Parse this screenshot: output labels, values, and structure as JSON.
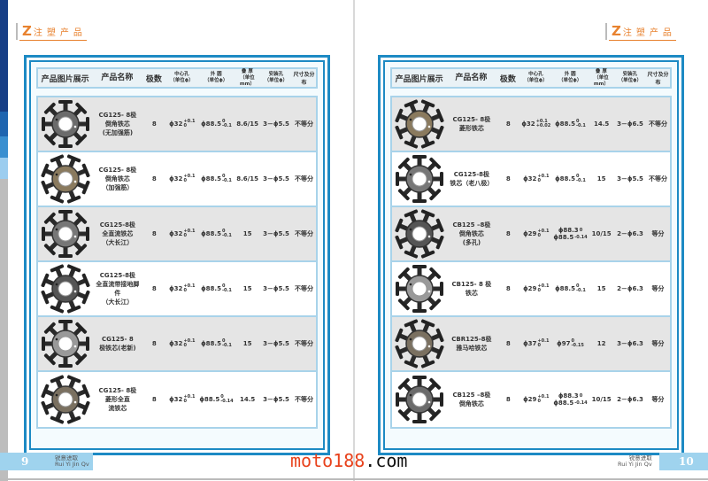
{
  "section_title": {
    "letter": "Z",
    "text": "注塑产品"
  },
  "headers": [
    "产品图片展示",
    "产品名称",
    "极数",
    [
      "中心孔",
      "（单位ϕ）"
    ],
    [
      "外 圆",
      "（单位ϕ）"
    ],
    [
      "叠 厚",
      "（单位mm）"
    ],
    [
      "安装孔",
      "（单位ϕ）"
    ],
    "尺寸及分布"
  ],
  "pages": [
    {
      "page_number": "9",
      "rows": [
        {
          "name": [
            "CG125- 8极",
            "倒角铁芯",
            "(无加强筋)"
          ],
          "poles": "8",
          "center": [
            {
              "b": "ϕ32",
              "u": "+0.1",
              "l": "0"
            }
          ],
          "outer": [
            {
              "b": "ϕ88.5",
              "u": "0",
              "l": "-0.1"
            }
          ],
          "thickness": "8.6/15",
          "holes": "3－ϕ5.5",
          "distribution": "不等分"
        },
        {
          "name": [
            "CG125- 8极",
            "倒角铁芯",
            "（加强筋）"
          ],
          "poles": "8",
          "center": [
            {
              "b": "ϕ32",
              "u": "+0.1",
              "l": "0"
            }
          ],
          "outer": [
            {
              "b": "ϕ88.5",
              "u": "0",
              "l": "-0.1"
            }
          ],
          "thickness": "8.6/15",
          "holes": "3－ϕ5.5",
          "distribution": "不等分"
        },
        {
          "name": [
            "CG125-8极",
            "全直流铁芯",
            "（大长江）"
          ],
          "poles": "8",
          "center": [
            {
              "b": "ϕ32",
              "u": "+0.1",
              "l": "0"
            }
          ],
          "outer": [
            {
              "b": "ϕ88.5",
              "u": "0",
              "l": "-0.1"
            }
          ],
          "thickness": "15",
          "holes": "3－ϕ5.5",
          "distribution": "不等分"
        },
        {
          "name": [
            "CG125-8极",
            "全直流带接地脚件",
            "（大长江）"
          ],
          "poles": "8",
          "center": [
            {
              "b": "ϕ32",
              "u": "+0.1",
              "l": "0"
            }
          ],
          "outer": [
            {
              "b": "ϕ88.5",
              "u": "0",
              "l": "-0.1"
            }
          ],
          "thickness": "15",
          "holes": "3－ϕ5.5",
          "distribution": "不等分"
        },
        {
          "name": [
            "CG125- 8",
            "极铁芯(老新)"
          ],
          "poles": "8",
          "center": [
            {
              "b": "ϕ32",
              "u": "+0.1",
              "l": "0"
            }
          ],
          "outer": [
            {
              "b": "ϕ88.5",
              "u": "0",
              "l": "-0.1"
            }
          ],
          "thickness": "15",
          "holes": "3－ϕ5.5",
          "distribution": "不等分"
        },
        {
          "name": [
            "CG125- 8极",
            "菱形全直",
            "流铁芯"
          ],
          "poles": "8",
          "center": [
            {
              "b": "ϕ32",
              "u": "+0.1",
              "l": "0"
            }
          ],
          "outer": [
            {
              "b": "ϕ88.5",
              "u": "0",
              "l": "-0.14"
            }
          ],
          "thickness": "14.5",
          "holes": "3－ϕ5.5",
          "distribution": "不等分"
        }
      ]
    },
    {
      "page_number": "10",
      "rows": [
        {
          "name": [
            "CG125- 8极",
            "菱形铁芯"
          ],
          "poles": "8",
          "center": [
            {
              "b": "ϕ32",
              "u": "+0.1",
              "l": "+0.02"
            }
          ],
          "outer": [
            {
              "b": "ϕ88.5",
              "u": "0",
              "l": "-0.1"
            }
          ],
          "thickness": "14.5",
          "holes": "3－ϕ6.5",
          "distribution": "不等分"
        },
        {
          "name": [
            "CG125-8极",
            "铁芯（老八极）"
          ],
          "poles": "8",
          "center": [
            {
              "b": "ϕ32",
              "u": "+0.1",
              "l": "0"
            }
          ],
          "outer": [
            {
              "b": "ϕ88.5",
              "u": "0",
              "l": "-0.1"
            }
          ],
          "thickness": "15",
          "holes": "3－ϕ5.5",
          "distribution": "不等分"
        },
        {
          "name": [
            "CB125 –8极",
            "倒角铁芯",
            "(多孔)"
          ],
          "poles": "8",
          "center": [
            {
              "b": "ϕ29",
              "u": "+0.1",
              "l": "0"
            }
          ],
          "outer": [
            {
              "b": "ϕ88.3",
              "u": "0",
              "l": ""
            },
            {
              "b": "ϕ88.5",
              "u": "",
              "l": "-0.14"
            }
          ],
          "thickness": "10/15",
          "holes": "2－ϕ6.3",
          "distribution": "等分"
        },
        {
          "name": [
            "CB125- 8 极",
            "铁芯"
          ],
          "poles": "8",
          "center": [
            {
              "b": "ϕ29",
              "u": "+0.1",
              "l": "0"
            }
          ],
          "outer": [
            {
              "b": "ϕ88.5",
              "u": "0",
              "l": "-0.1"
            }
          ],
          "thickness": "15",
          "holes": "2－ϕ6.3",
          "distribution": "等分"
        },
        {
          "name": [
            "CBR125-8极",
            "雅马哈铁芯"
          ],
          "poles": "8",
          "center": [
            {
              "b": "ϕ37",
              "u": "+0.1",
              "l": "0"
            }
          ],
          "outer": [
            {
              "b": "ϕ97",
              "u": "0",
              "l": "-0.15"
            }
          ],
          "thickness": "12",
          "holes": "3－ϕ6.3",
          "distribution": "等分"
        },
        {
          "name": [
            "CB125 –8极",
            "倒角铁芯"
          ],
          "poles": "8",
          "center": [
            {
              "b": "ϕ29",
              "u": "+0.1",
              "l": "0"
            }
          ],
          "outer": [
            {
              "b": "ϕ88.3",
              "u": "0",
              "l": ""
            },
            {
              "b": "ϕ88.5",
              "u": "",
              "l": "-0.14"
            }
          ],
          "thickness": "10/15",
          "holes": "2－ϕ6.3",
          "distribution": "等分"
        }
      ]
    }
  ],
  "brand": {
    "cn": "锐意进取",
    "en": "Rui Yi Jin Qv"
  },
  "watermark": {
    "red": "moto188",
    "black": ".com"
  },
  "colors": {
    "frame": "#1d8ac4",
    "accent": "#e8822f",
    "page_tab": "#9fd3ee"
  }
}
